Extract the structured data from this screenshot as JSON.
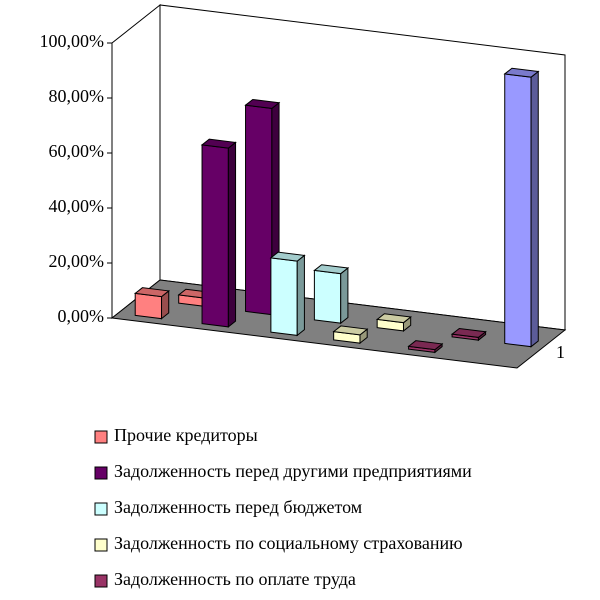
{
  "chart_data": {
    "type": "bar3d",
    "categories": [
      "1",
      null
    ],
    "series": [
      {
        "name": "Прочие кредиторы",
        "color": "#ff8080",
        "values": [
          8,
          3
        ]
      },
      {
        "name": "Задолженность перед другими предприятиями",
        "color": "#660066",
        "values": [
          65,
          75
        ]
      },
      {
        "name": "Задолженность перед бюджетом",
        "color": "#ccffff",
        "values": [
          27,
          18
        ]
      },
      {
        "name": "Задолженность по социальному страхованию",
        "color": "#ffffcc",
        "values": [
          3,
          3
        ]
      },
      {
        "name": "Задолженность по оплате труда",
        "color": "#993366",
        "values": [
          1,
          1
        ]
      },
      {
        "color": "#9999ff",
        "values": [
          null,
          98
        ]
      }
    ],
    "ylim": [
      0,
      100
    ],
    "yticks": [
      {
        "value": 0,
        "label": "0,00%"
      },
      {
        "value": 20,
        "label": "20,00%"
      },
      {
        "value": 40,
        "label": "40,00%"
      },
      {
        "value": 60,
        "label": "60,00%"
      },
      {
        "value": 80,
        "label": "80,00%"
      },
      {
        "value": 100,
        "label": "100,00%"
      }
    ]
  }
}
